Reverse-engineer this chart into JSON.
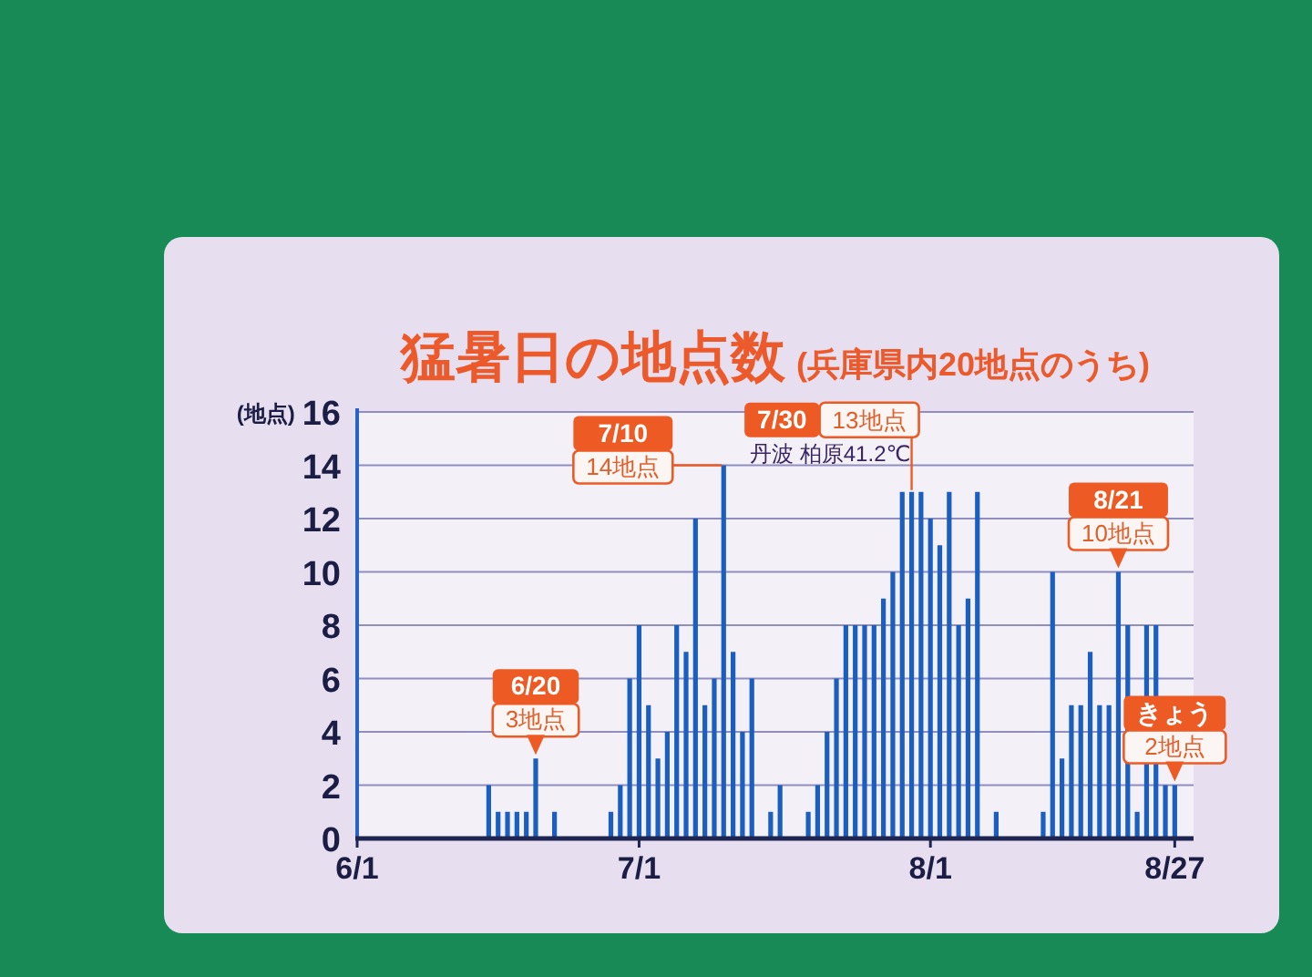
{
  "chart_data": {
    "type": "bar",
    "title": "猛暑日の地点数",
    "subtitle": "(兵庫県内20地点のうち)",
    "ylabel": "(地点)",
    "x": [
      "--06-15",
      "--06-16",
      "--06-17",
      "--06-18",
      "--06-19",
      "--06-20",
      "--06-22",
      "--06-28",
      "--06-29",
      "--06-30",
      "--07-01",
      "--07-02",
      "--07-03",
      "--07-04",
      "--07-05",
      "--07-06",
      "--07-07",
      "--07-08",
      "--07-09",
      "--07-10",
      "--07-11",
      "--07-12",
      "--07-13",
      "--07-15",
      "--07-16",
      "--07-19",
      "--07-20",
      "--07-21",
      "--07-22",
      "--07-23",
      "--07-24",
      "--07-25",
      "--07-26",
      "--07-27",
      "--07-28",
      "--07-29",
      "--07-30",
      "--07-31",
      "--08-01",
      "--08-02",
      "--08-03",
      "--08-04",
      "--08-05",
      "--08-06",
      "--08-08",
      "--08-13",
      "--08-14",
      "--08-15",
      "--08-16",
      "--08-17",
      "--08-18",
      "--08-19",
      "--08-20",
      "--08-21",
      "--08-22",
      "--08-23",
      "--08-24",
      "--08-25",
      "--08-26",
      "--08-27"
    ],
    "values": [
      2,
      1,
      1,
      1,
      1,
      3,
      1,
      1,
      2,
      6,
      8,
      5,
      3,
      4,
      8,
      7,
      12,
      5,
      6,
      14,
      7,
      4,
      6,
      1,
      2,
      1,
      2,
      4,
      6,
      8,
      8,
      8,
      8,
      9,
      10,
      13,
      13,
      13,
      12,
      11,
      13,
      8,
      9,
      13,
      1,
      1,
      10,
      3,
      5,
      5,
      7,
      5,
      5,
      10,
      8,
      1,
      8,
      8,
      2,
      2
    ],
    "color": "#1a5fc0",
    "xlim": [
      "--06-01",
      "--08-29"
    ],
    "xticks": [
      {
        "value": "--06-01",
        "label": "6/1"
      },
      {
        "value": "--07-01",
        "label": "7/1"
      },
      {
        "value": "--08-01",
        "label": "8/1"
      },
      {
        "value": "--08-27",
        "label": "8/27"
      }
    ],
    "ylim": [
      0,
      16
    ],
    "yticks": [
      0,
      2,
      4,
      6,
      8,
      10,
      12,
      14,
      16
    ],
    "grid": "y",
    "annotations": [
      {
        "text": "6/20\n3地点",
        "x": "--06-20",
        "y": 3
      },
      {
        "text": "7/10\n14地点",
        "x": "--07-10",
        "y": 14
      },
      {
        "text": "7/30\n13地点",
        "x": "--07-30",
        "y": 13
      },
      {
        "text": "丹波 柏原41.2℃",
        "x": "--07-30",
        "y": 13
      },
      {
        "text": "8/21\n10地点",
        "x": "--08-21",
        "y": 10
      },
      {
        "text": "きょう\n2地点",
        "x": "--08-27",
        "y": 2
      }
    ]
  }
}
